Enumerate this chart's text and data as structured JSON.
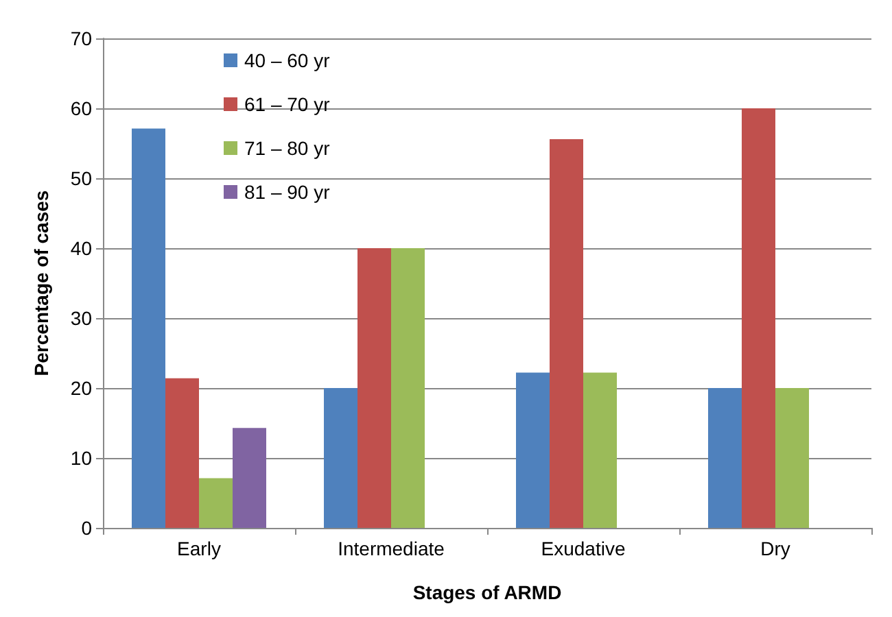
{
  "chart_data": {
    "type": "bar",
    "xlabel": "Stages of ARMD",
    "ylabel": "Percentage of cases",
    "categories": [
      "Early",
      "Intermediate",
      "Exudative",
      "Dry"
    ],
    "series": [
      {
        "name": "40 – 60 yr",
        "color": "#4f81bd",
        "values": [
          57.1,
          20,
          22.2,
          20
        ]
      },
      {
        "name": "61 – 70 yr",
        "color": "#c0504d",
        "values": [
          21.4,
          40,
          55.6,
          60
        ]
      },
      {
        "name": "71 – 80 yr",
        "color": "#9bbb59",
        "values": [
          7.1,
          40,
          22.2,
          20
        ]
      },
      {
        "name": "81 – 90 yr",
        "color": "#8064a2",
        "values": [
          14.3,
          null,
          null,
          null
        ]
      }
    ],
    "ylim": [
      0,
      70
    ],
    "yticks": [
      0,
      10,
      20,
      30,
      40,
      50,
      60,
      70
    ],
    "grid": "y",
    "legend": "top left"
  }
}
